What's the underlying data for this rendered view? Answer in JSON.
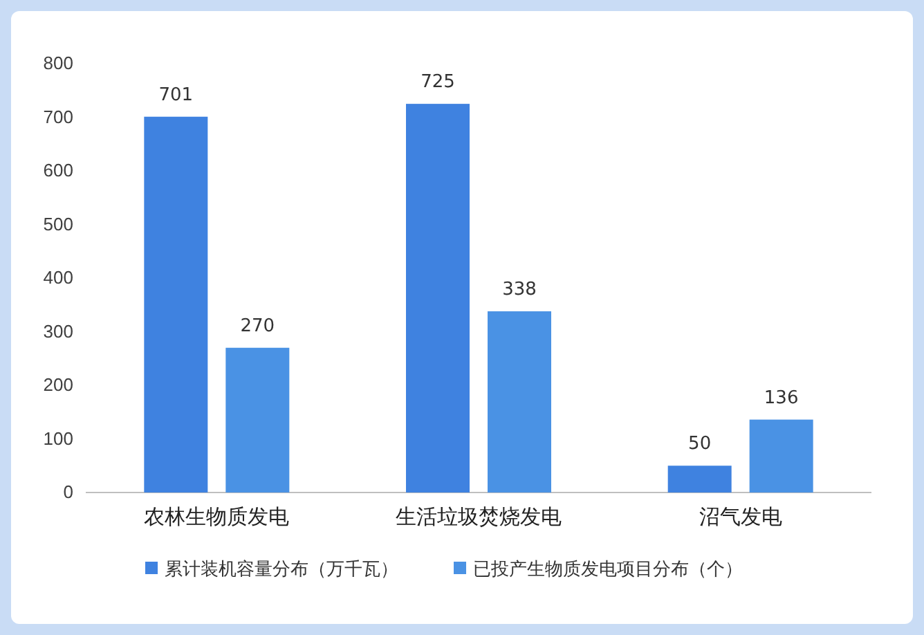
{
  "chart_data": {
    "type": "bar",
    "categories": [
      "农林生物质发电",
      "生活垃圾焚烧发电",
      "沼气发电"
    ],
    "series": [
      {
        "name": "累计装机容量分布（万千瓦）",
        "color": "#3f82e0",
        "values": [
          701,
          725,
          50
        ]
      },
      {
        "name": "已投产生物质发电项目分布（个）",
        "color": "#4a92e4",
        "values": [
          270,
          338,
          136
        ]
      }
    ],
    "ylim": [
      0,
      800
    ],
    "yticks": [
      0,
      100,
      200,
      300,
      400,
      500,
      600,
      700,
      800
    ],
    "data_labels": true,
    "legend": "bottom"
  }
}
